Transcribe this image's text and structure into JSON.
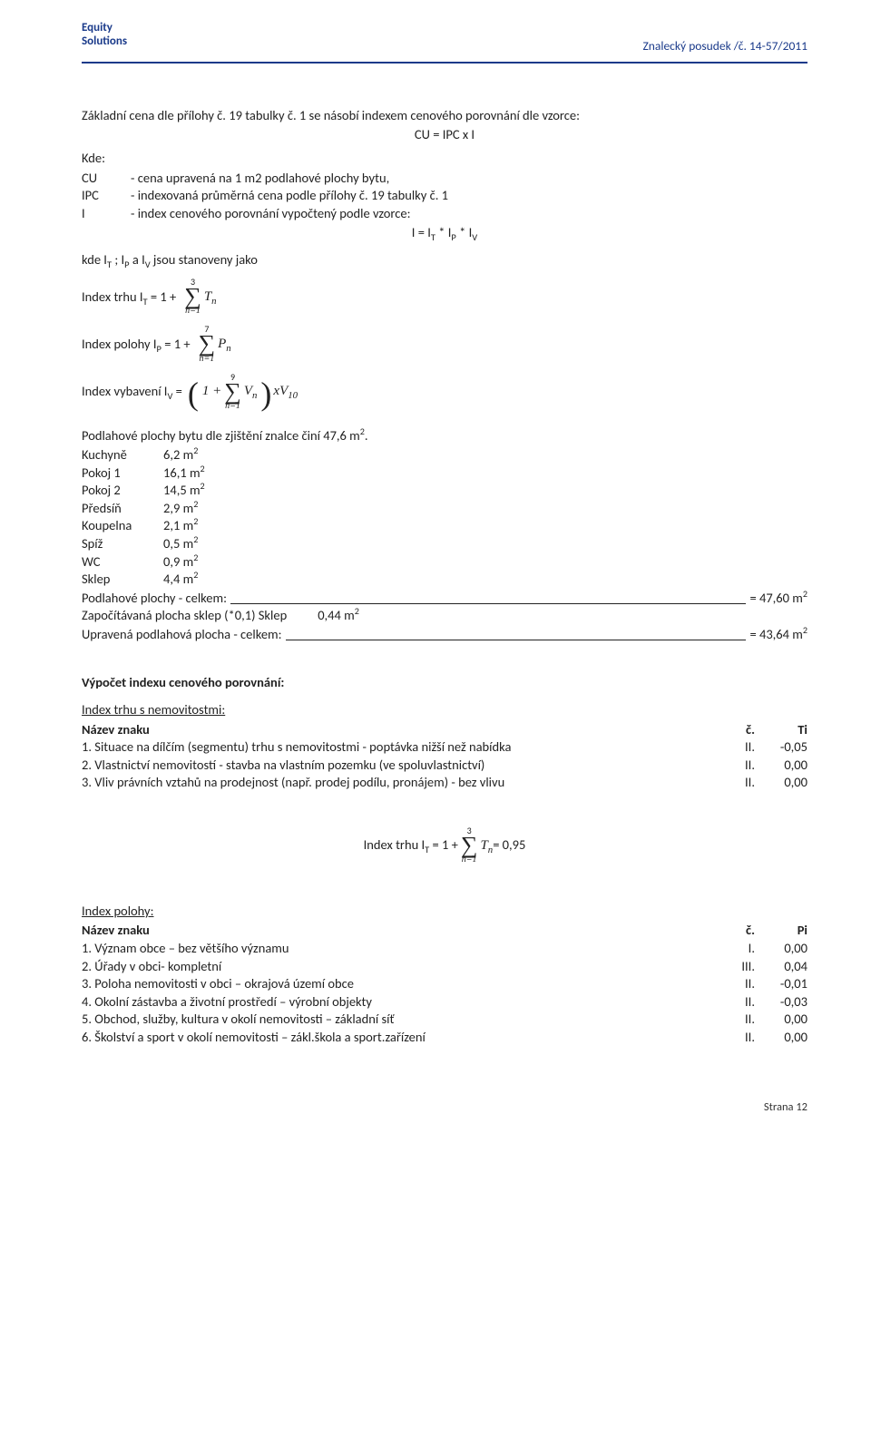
{
  "logo_line1": "Equity",
  "logo_line2": "Solutions",
  "doc_id": "Znalecký posudek /č. 14-57/2011",
  "intro_line": "Základní cena dle přílohy č. 19 tabulky č. 1 se násobí indexem cenového porovnání dle vzorce:",
  "formula_cu": "CU = IPC x I",
  "kde_label": "Kde:",
  "kde": {
    "cu_key": "CU",
    "cu_val": "- cena upravená na 1 m2 podlahové plochy bytu,",
    "ipc_key": "IPC",
    "ipc_val": "- indexovaná průměrná cena podle přílohy č. 19 tabulky č. 1",
    "i_key": "I",
    "i_val": "- index cenového porovnání vypočtený podle vzorce:"
  },
  "formula_i_line": "I = I",
  "formula_i_line_rest": " * I",
  "formula_i_t": "T",
  "formula_i_p": "P",
  "formula_i_v": "V",
  "stanoveny": "kde I",
  "stanoveny_rest1": " ; I",
  "stanoveny_rest2": " a I",
  "stanoveny_rest3": " jsou stanoveny jako",
  "idx_trhu_label": "Index trhu I",
  "idx_trhu_eq": " = 1 + ",
  "sum_top_3": "3",
  "sum_bot": "n=1",
  "sym_T": "T",
  "sym_n": "n",
  "idx_polohy_label": "Index polohy I",
  "idx_polohy_eq": " = 1 + ",
  "sum_top_7": "7",
  "sym_P": "P",
  "idx_vyb_label": "Index vybavení I",
  "idx_vyb_eq_pre": " = ",
  "one_plus": "1 + ",
  "sum_top_9": "9",
  "sym_V": "V",
  "xV10": "xV",
  "ten": "10",
  "podl_intro": "Podlahové plochy bytu dle zjištění znalce činí 47,6 m",
  "sq": "2",
  "period": ".",
  "rooms": [
    {
      "name": "Kuchyně",
      "val": "6,2 m"
    },
    {
      "name": "Pokoj 1",
      "val": "16,1 m"
    },
    {
      "name": "Pokoj 2",
      "val": "14,5 m"
    },
    {
      "name": "Předsíň",
      "val": "2,9 m"
    },
    {
      "name": "Koupelna",
      "val": "2,1 m"
    },
    {
      "name": "Spíž",
      "val": "0,5 m"
    },
    {
      "name": "WC",
      "val": "0,9 m"
    },
    {
      "name": "Sklep",
      "val": "4,4 m"
    }
  ],
  "tot1_left": "Podlahové plochy - celkem:",
  "tot1_right": "= 47,60 m",
  "adj_left": "Započítávaná plocha sklep (*0,1) Sklep",
  "adj_mid": "0,44 m",
  "tot2_left": "Upravená podlahová plocha - celkem:",
  "tot2_right": "= 43,64 m",
  "calc_h": "Výpočet indexu cenového porovnání:",
  "trh_head": "Index trhu s nemovitostmi:",
  "col_name": "Název znaku",
  "col_c": "č.",
  "col_ti": "Ti",
  "trh_rows": [
    {
      "name": "1. Situace na dílčím (segmentu) trhu s nemovitostmi - poptávka nižší než nabídka",
      "c": "II.",
      "v": "-0,05"
    },
    {
      "name": "2. Vlastnictví nemovitostí - stavba na vlastním pozemku (ve spoluvlastnictví)",
      "c": "II.",
      "v": "0,00"
    },
    {
      "name": "3. Vliv právních vztahů na prodejnost (např. prodej podílu, pronájem) - bez vlivu",
      "c": "II.",
      "v": "0,00"
    }
  ],
  "trh_formula_pre": "Index trhu I",
  "trh_formula_eq": " = 1 + ",
  "trh_formula_result": " = 0,95",
  "pol_head": "Index polohy:",
  "col_pi": "Pi",
  "pol_rows": [
    {
      "name": "1. Význam obce – bez většího významu",
      "c": "I.",
      "v": "0,00"
    },
    {
      "name": "2. Úřady v obci- kompletní",
      "c": "III.",
      "v": "0,04"
    },
    {
      "name": "3. Poloha nemovitosti v obci – okrajová území obce",
      "c": "II.",
      "v": "-0,01"
    },
    {
      "name": "4. Okolní zástavba a životní prostředí – výrobní objekty",
      "c": "II.",
      "v": "-0,03"
    },
    {
      "name": "5. Obchod, služby, kultura v okolí nemovitosti – základní síť",
      "c": "II.",
      "v": "0,00"
    },
    {
      "name": "6. Školství a sport v okolí nemovitosti – zákl.škola a sport.zařízení",
      "c": "II.",
      "v": "0,00"
    }
  ],
  "footer": "Strana 12"
}
